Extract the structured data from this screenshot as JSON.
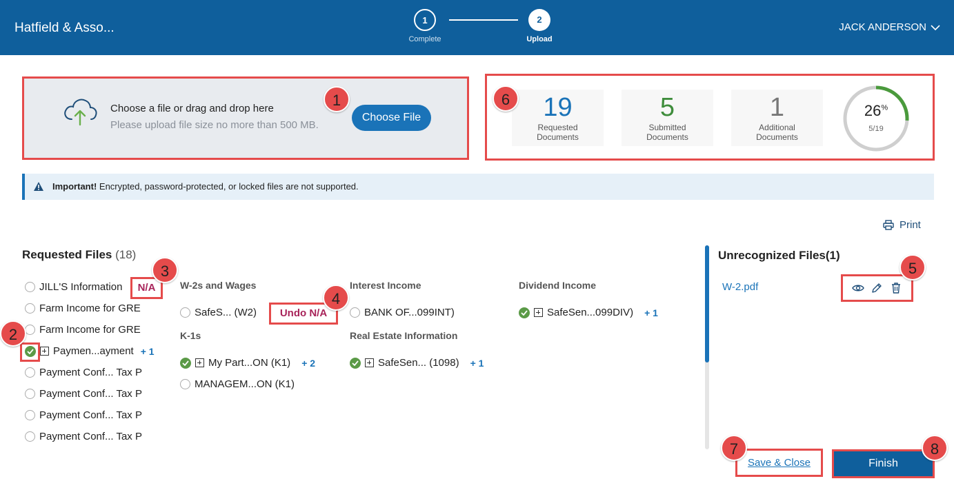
{
  "header": {
    "app_title": "Hatfield & Asso...",
    "user_name": "JACK ANDERSON",
    "steps": [
      {
        "number": "1",
        "label": "Complete"
      },
      {
        "number": "2",
        "label": "Upload"
      }
    ]
  },
  "upload": {
    "title": "Choose a file or drag and drop here",
    "subtitle": "Please upload file size no more than 500 MB.",
    "button": "Choose File"
  },
  "stats": {
    "requested": {
      "value": "19",
      "label": "Requested Documents"
    },
    "submitted": {
      "value": "5",
      "label": "Submitted Documents"
    },
    "additional": {
      "value": "1",
      "label": "Additional Documents"
    },
    "progress": {
      "percent": "26",
      "percent_sign": "%",
      "fraction": "5/19",
      "value": 0.26
    }
  },
  "info": {
    "strong": "Important!",
    "text": " Encrypted, password-protected, or locked files are not supported."
  },
  "print_label": "Print",
  "requested_files": {
    "title": "Requested Files",
    "count": "(18)",
    "list": [
      "JILL'S Information",
      "Farm Income for GRE",
      "Farm Income for GRE",
      "Paymen...ayment",
      "Payment Conf... Tax P",
      "Payment Conf... Tax P",
      "Payment Conf... Tax P",
      "Payment Conf... Tax P"
    ],
    "list_more": "+ 1",
    "na_label": "N/A",
    "categories": {
      "w2": {
        "title": "W-2s and Wages",
        "item": "SafeS... (W2)",
        "undo_na": "Undo N/A"
      },
      "interest": {
        "title": "Interest Income",
        "item": "BANK OF...099INT)"
      },
      "dividend": {
        "title": "Dividend Income",
        "item": "SafeSen...099DIV)",
        "more": "+ 1"
      },
      "k1": {
        "title": "K-1s",
        "item1": "My Part...ON (K1)",
        "item1_more": "+ 2",
        "item2": "MANAGEM...ON (K1)"
      },
      "real_estate": {
        "title": "Real Estate Information",
        "item": "SafeSen... (1098)",
        "more": "+ 1"
      }
    }
  },
  "unrecognized": {
    "title": "Unrecognized Files(1)",
    "file": "W-2.pdf",
    "actions": [
      "eye-icon",
      "pencil-icon",
      "trash-icon"
    ]
  },
  "buttons": {
    "save_close": "Save & Close",
    "finish": "Finish"
  },
  "markers": [
    "1",
    "2",
    "3",
    "4",
    "5",
    "6",
    "7",
    "8"
  ],
  "colors": {
    "header": "#0f5f9c",
    "accent": "#1a73b8",
    "highlight": "#e54b4b",
    "success": "#5b9a47",
    "na": "#a8245a"
  }
}
